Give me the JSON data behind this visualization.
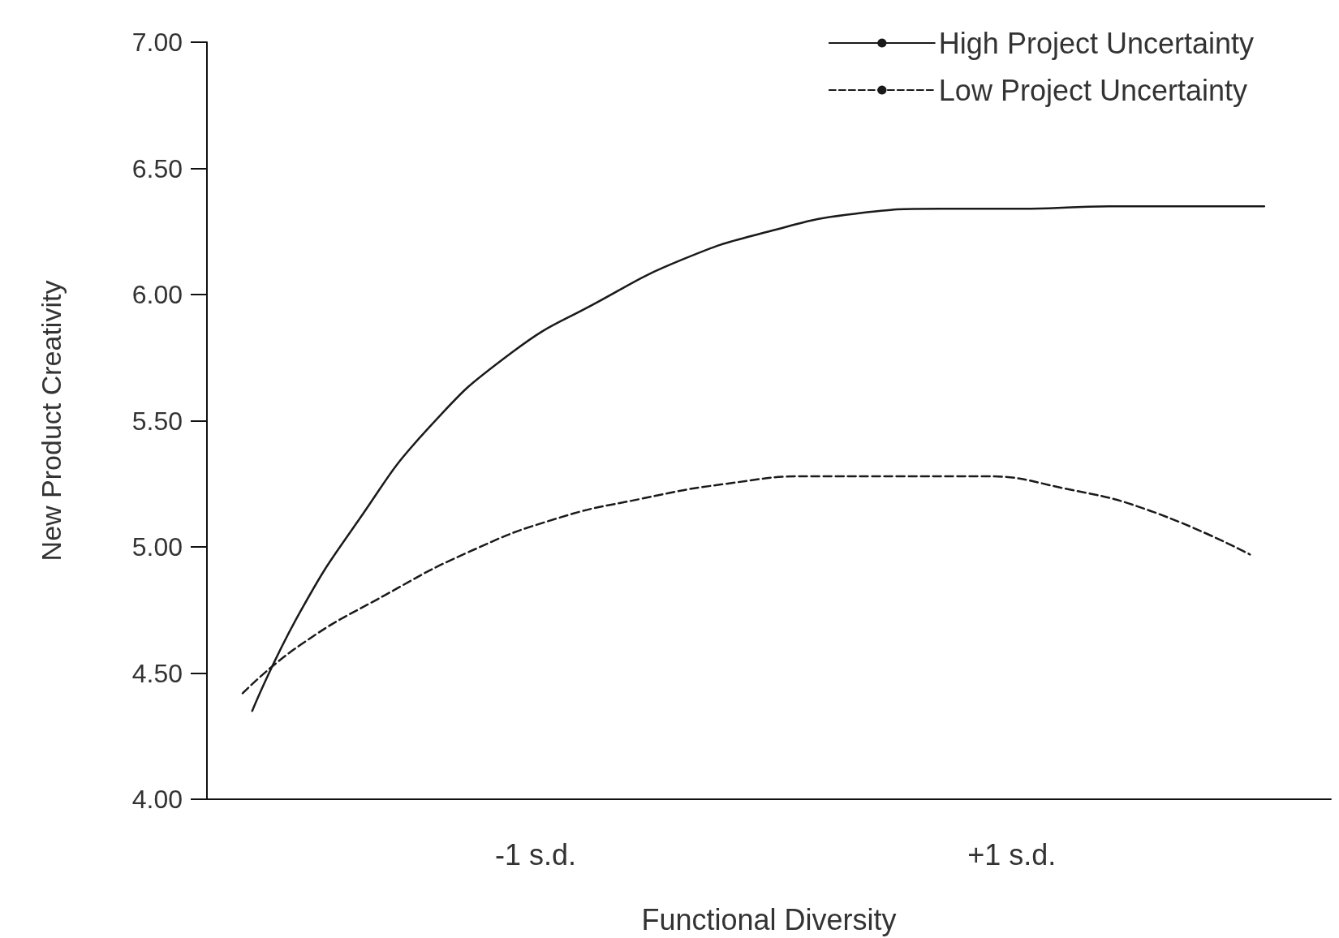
{
  "chart_data": {
    "type": "line",
    "xlabel": "Functional Diversity",
    "ylabel": "New Product Creativity",
    "xlim": [
      -2.38,
      2.34
    ],
    "xticks": [
      {
        "value": -1,
        "label": "-1 s.d."
      },
      {
        "value": 1,
        "label": "+1 s.d."
      }
    ],
    "ylim": [
      4,
      7
    ],
    "yticks": [
      {
        "value": 4,
        "label": "4.00"
      },
      {
        "value": 4.5,
        "label": "4.50"
      },
      {
        "value": 5,
        "label": "5.00"
      },
      {
        "value": 5.5,
        "label": "5.50"
      },
      {
        "value": 6,
        "label": "6.00"
      },
      {
        "value": 6.5,
        "label": "6.50"
      },
      {
        "value": 7,
        "label": "7.00"
      }
    ],
    "grid": false,
    "legend": "top right",
    "marker": "none",
    "series": [
      {
        "name": "High Project Uncertainty",
        "color": "#1a1a1a",
        "line_style": "solid",
        "x": [
          -2.19,
          -1.99,
          -1.74,
          -1.46,
          -1.1,
          -0.74,
          -0.38,
          -0.02,
          0.34,
          0.7,
          1.05,
          1.41,
          2.06
        ],
        "values": [
          4.35,
          4.74,
          5.11,
          5.46,
          5.77,
          5.97,
          6.14,
          6.25,
          6.32,
          6.34,
          6.34,
          6.35,
          6.35
        ]
      },
      {
        "name": "Low Project Uncertainty",
        "color": "#1a1a1a",
        "line_style": "dashed",
        "x": [
          -2.23,
          -1.99,
          -1.63,
          -1.28,
          -0.92,
          -0.56,
          -0.2,
          0.16,
          0.52,
          0.87,
          1.23,
          1.59,
          2.0
        ],
        "values": [
          4.42,
          4.61,
          4.81,
          4.98,
          5.11,
          5.19,
          5.25,
          5.28,
          5.28,
          5.28,
          5.23,
          5.14,
          4.97
        ]
      }
    ]
  }
}
